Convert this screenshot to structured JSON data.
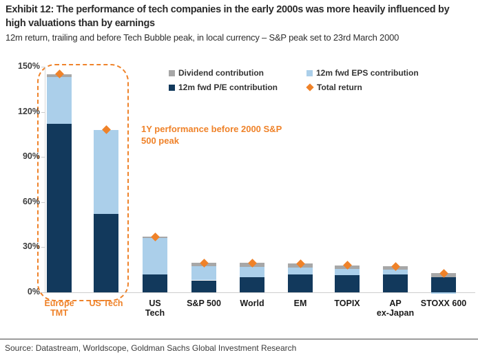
{
  "header": {
    "title": "Exhibit 12: The performance of tech companies in the early 2000s was more heavily influenced by high valuations than by earnings",
    "subtitle": "12m return, trailing and before Tech Bubble peak, in local currency – S&P peak set to 23rd March 2000"
  },
  "legend": {
    "items": [
      {
        "label": "Dividend contribution",
        "marker": "square",
        "color": "#a7a7a7"
      },
      {
        "label": "12m fwd EPS contribution",
        "marker": "square",
        "color": "#abcfea"
      },
      {
        "label": "12m fwd P/E contribution",
        "marker": "square",
        "color": "#12395c"
      },
      {
        "label": "Total return",
        "marker": "diamond",
        "color": "#ef8229"
      }
    ]
  },
  "annotation": {
    "text": "1Y performance before 2000 S&P 500 peak",
    "color": "#ef8229"
  },
  "chart_data": {
    "type": "bar",
    "stacked": true,
    "title": "Exhibit 12: The performance of tech companies in the early 2000s was more heavily influenced by high valuations than by earnings",
    "subtitle": "12m return, trailing and before Tech Bubble peak, in local currency – S&P peak set to 23rd March 2000",
    "categories": [
      "Europe TMT",
      "US Tech",
      "US Tech",
      "S&P 500",
      "World",
      "EM",
      "TOPIX",
      "AP ex-Japan",
      "STOXX 600"
    ],
    "category_lines": [
      [
        "Europe",
        "TMT"
      ],
      [
        "US Tech"
      ],
      [
        "US",
        "Tech"
      ],
      [
        "S&P 500"
      ],
      [
        "World"
      ],
      [
        "EM"
      ],
      [
        "TOPIX"
      ],
      [
        "AP",
        "ex-Japan"
      ],
      [
        "STOXX 600"
      ]
    ],
    "highlighted": [
      true,
      true,
      false,
      false,
      false,
      false,
      false,
      false,
      false
    ],
    "series": [
      {
        "name": "12m fwd P/E contribution",
        "color": "#12395c",
        "values": [
          112,
          52,
          12,
          8,
          10,
          12,
          11.5,
          12,
          10
        ]
      },
      {
        "name": "12m fwd EPS contribution",
        "color": "#abcfea",
        "values": [
          31,
          56,
          24,
          9.5,
          7,
          4.5,
          4,
          3,
          -1
        ]
      },
      {
        "name": "Dividend contribution",
        "color": "#a7a7a7",
        "values": [
          2,
          0,
          1,
          2,
          2.5,
          2.5,
          2.5,
          2.5,
          3
        ]
      }
    ],
    "markers": {
      "name": "Total return",
      "color": "#ef8229",
      "values": [
        145,
        108,
        37,
        19.5,
        19.5,
        19,
        18,
        17,
        12.5
      ]
    },
    "ylabel": "",
    "ylim": [
      0,
      150
    ],
    "yticks": [
      {
        "value": 0,
        "label": "0%"
      },
      {
        "value": 30,
        "label": "30%"
      },
      {
        "value": 60,
        "label": "60%"
      },
      {
        "value": 90,
        "label": "90%"
      },
      {
        "value": 120,
        "label": "120%"
      },
      {
        "value": 150,
        "label": "150%"
      }
    ],
    "grid": false,
    "legend_position": "top-center",
    "annotation": "1Y performance before 2000 S&P 500 peak"
  },
  "footer": {
    "source": "Source: Datastream, Worldscope, Goldman Sachs Global Investment Research"
  }
}
